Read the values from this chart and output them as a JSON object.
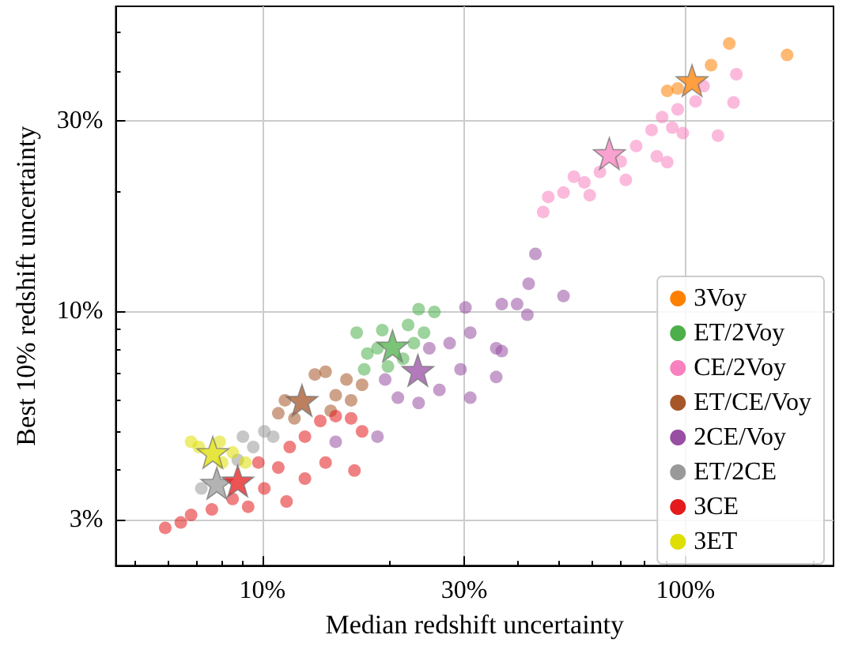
{
  "chart_data": {
    "type": "scatter",
    "xlabel": "Median redshift uncertainty",
    "ylabel": "Best 10% redshift uncertainty",
    "log": "xy",
    "grid": true,
    "legend": "bottom right",
    "marker": "circle",
    "xlim": [
      4.5,
      224
    ],
    "ylim": [
      2.3,
      58
    ],
    "xticks": [
      {
        "value": 10,
        "label": "10%"
      },
      {
        "value": 30,
        "label": "30%"
      },
      {
        "value": 100,
        "label": "100%"
      }
    ],
    "yticks": [
      {
        "value": 3,
        "label": "3%"
      },
      {
        "value": 10,
        "label": "10%"
      },
      {
        "value": 30,
        "label": "30%"
      }
    ],
    "series": [
      {
        "name": "3Voy",
        "color": "#ff7f00",
        "x": [
          127,
          174,
          115,
          90.6,
          95.9
        ],
        "values": [
          46.8,
          43.8,
          41.3,
          35.6,
          36.1
        ]
      },
      {
        "name": "ET/2Voy",
        "color": "#4daf4a",
        "x": [
          23.4,
          25.5,
          16.7,
          17.7,
          17.4,
          19.2,
          22.1,
          24.1,
          21.5,
          18.7,
          22.8,
          19.8
        ],
        "values": [
          10.1,
          9.94,
          8.82,
          7.82,
          7.14,
          8.95,
          9.22,
          8.82,
          7.59,
          8.06,
          8.3,
          7.26
        ]
      },
      {
        "name": "CE/2Voy",
        "color": "#f781bf",
        "x": [
          46.1,
          47.4,
          51.5,
          57.7,
          62.8,
          70.3,
          76.5,
          83.2,
          88.1,
          95.9,
          110.4,
          132,
          130,
          119.4,
          90.6,
          85.6,
          72.3,
          59.4,
          98.6,
          93.1,
          54.5,
          105.7
        ],
        "values": [
          17.7,
          19.3,
          19.8,
          21,
          22.3,
          23.7,
          25.9,
          28.4,
          30.6,
          32,
          36.6,
          39.2,
          33.3,
          27.5,
          23.6,
          24.4,
          21.3,
          19.5,
          27.9,
          28.8,
          21.7,
          33.5
        ]
      },
      {
        "name": "ET/CE/Voy",
        "color": "#a65628",
        "x": [
          10.9,
          11.3,
          13.3,
          14.1,
          15.8,
          17.2,
          16.2,
          14.5,
          11.9,
          14.9
        ],
        "values": [
          5.54,
          5.97,
          6.93,
          7.04,
          6.73,
          6.53,
          5.97,
          5.62,
          5.38,
          6.15
        ]
      },
      {
        "name": "2CE/Voy",
        "color": "#984ea3",
        "x": [
          44.2,
          42.6,
          51.5,
          30.2,
          36.8,
          40,
          42.3,
          35.7,
          36.8,
          35.7,
          31,
          26.2,
          23.4,
          20.9,
          18.7,
          14.9,
          19.5,
          27.7,
          31,
          24.8,
          29.4
        ],
        "values": [
          13.9,
          11.7,
          10.9,
          10.2,
          10.4,
          10.4,
          9.78,
          8.06,
          7.93,
          6.83,
          6.06,
          6.34,
          5.88,
          6.06,
          4.84,
          4.7,
          6.73,
          8.3,
          8.82,
          8.06,
          7.14
        ]
      },
      {
        "name": "ET/2CE",
        "color": "#999999",
        "x": [
          7.17,
          8.99,
          10.1,
          10.6,
          9.51,
          8.74
        ],
        "values": [
          3.59,
          4.84,
          4.99,
          4.84,
          4.56,
          4.23
        ]
      },
      {
        "name": "3CE",
        "color": "#e41a1c",
        "x": [
          5.89,
          6.41,
          6.78,
          7.59,
          9.25,
          8.5,
          10.1,
          10.9,
          12.6,
          13.7,
          14.9,
          16.2,
          14.1,
          16.5,
          11.4,
          12.6,
          17.2,
          11.6,
          9.78
        ],
        "values": [
          2.86,
          2.95,
          3.08,
          3.18,
          3.23,
          3.38,
          3.59,
          4.05,
          4.84,
          5.3,
          5.45,
          5.38,
          4.17,
          3.98,
          3.33,
          3.8,
          4.99,
          4.56,
          4.17
        ]
      },
      {
        "name": "3ET",
        "color": "#dede00",
        "x": [
          6.78,
          7.07,
          7.92,
          8.5,
          9.11,
          8.03
        ],
        "values": [
          4.7,
          4.56,
          4.7,
          4.42,
          4.17,
          4.17
        ]
      },
      {
        "marker": "star",
        "colors": [
          "#ff7f00",
          "#4daf4a",
          "#f781bf",
          "#a65628",
          "#984ea3",
          "#999999",
          "#e41a1c",
          "#dede00"
        ],
        "x": [
          103.7,
          20.3,
          66.1,
          12.4,
          23.3,
          7.8,
          8.74,
          7.63
        ],
        "values": [
          37.8,
          8.17,
          24.8,
          5.97,
          7.1,
          3.7,
          3.75,
          4.42
        ]
      }
    ]
  }
}
